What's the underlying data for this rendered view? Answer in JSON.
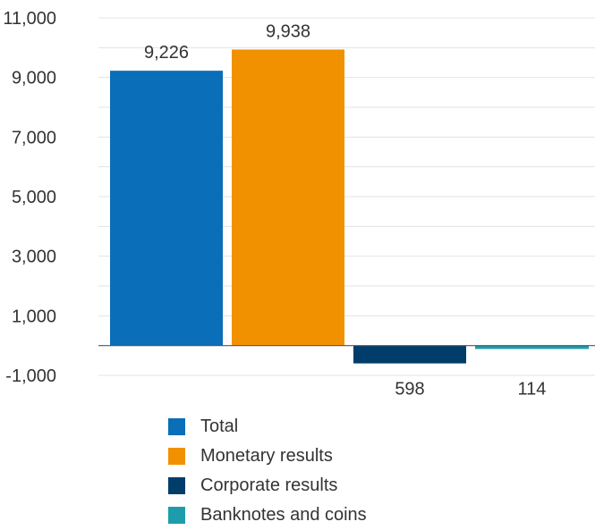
{
  "chart_data": {
    "type": "bar",
    "series": [
      {
        "name": "Total",
        "value": 9226,
        "label": "9,226",
        "color": "#0a6eb8"
      },
      {
        "name": "Monetary results",
        "value": 9938,
        "label": "9,938",
        "color": "#f29100"
      },
      {
        "name": "Corporate results",
        "value": -598,
        "label": "598",
        "color": "#003d6b"
      },
      {
        "name": "Banknotes and coins",
        "value": -114,
        "label": "114",
        "color": "#1d9dab"
      }
    ],
    "yticks": [
      11000,
      9000,
      7000,
      5000,
      3000,
      1000,
      -1000
    ],
    "ytick_labels": [
      "11,000",
      "9,000",
      "7,000",
      "5,000",
      "3,000",
      "1,000",
      "-1,000"
    ],
    "ylim": [
      -1000,
      11000
    ],
    "grid": true,
    "legend_position": "bottom"
  }
}
